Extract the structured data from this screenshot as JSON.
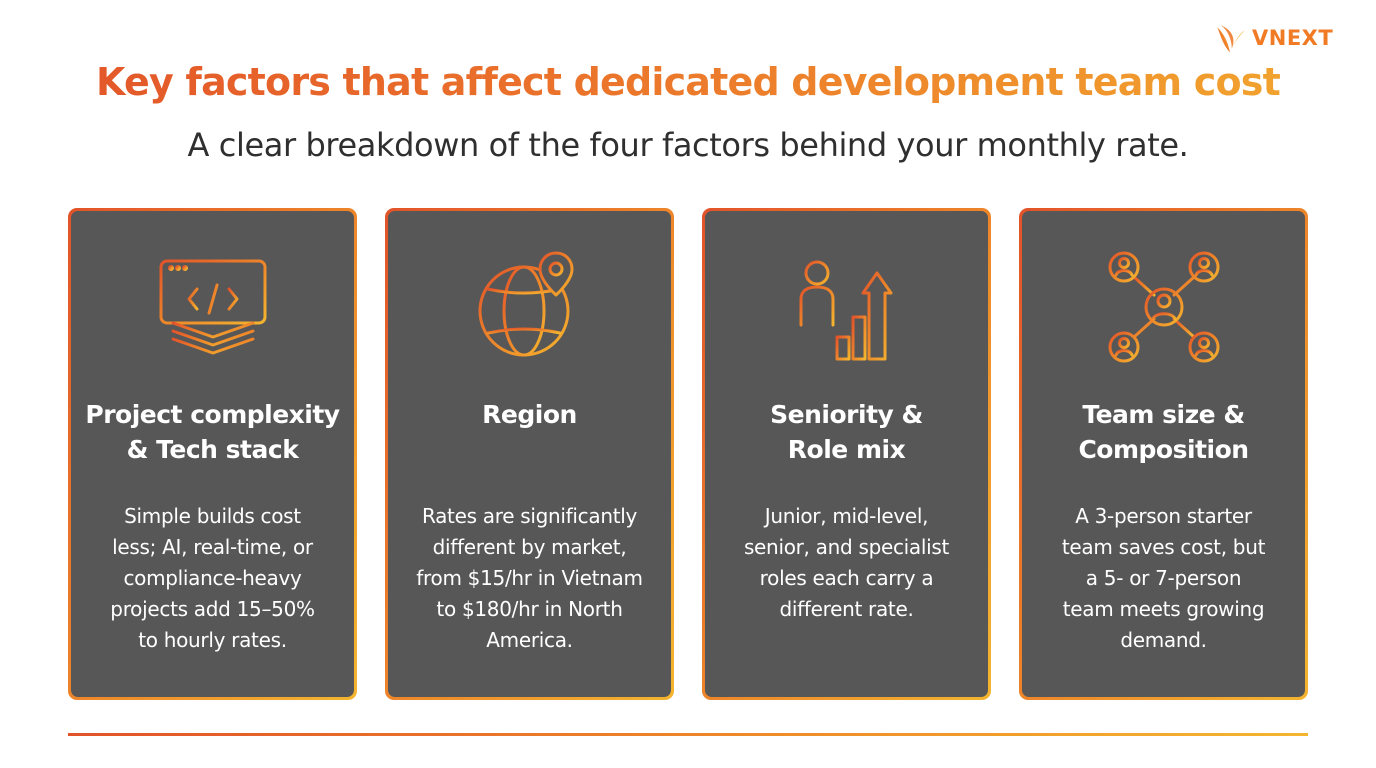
{
  "brand": {
    "name": "VNEXT",
    "icon": "vnext-leaf-icon",
    "color": "#f07b24"
  },
  "header": {
    "title": "Key factors that affect dedicated development team cost",
    "subtitle": "A clear breakdown of the four factors behind your monthly rate."
  },
  "colors": {
    "gradient_start": "#e2532a",
    "gradient_mid": "#ee8a2a",
    "gradient_end": "#f4b52f",
    "card_bg": "#575757"
  },
  "cards": [
    {
      "icon": "code-window-icon",
      "title_line1": "Project complexity",
      "title_line2": "& Tech stack",
      "body": [
        "Simple builds cost",
        "less; AI, real-time, or",
        "compliance-heavy",
        "projects add 15–50%",
        "to hourly rates."
      ]
    },
    {
      "icon": "globe-location-icon",
      "title_line1": "Region",
      "title_line2": "",
      "body": [
        "Rates are significantly",
        "different by market,",
        "from $15/hr in Vietnam",
        "to $180/hr in North",
        "America."
      ]
    },
    {
      "icon": "person-growth-chart-icon",
      "title_line1": "Seniority &",
      "title_line2": "Role mix",
      "body": [
        "Junior, mid-level,",
        "senior, and specialist",
        "roles each carry a",
        "different rate."
      ]
    },
    {
      "icon": "team-network-icon",
      "title_line1": "Team size &",
      "title_line2": "Composition",
      "body": [
        "A 3-person starter",
        "team saves cost, but",
        "a 5- or 7-person",
        "team meets growing",
        "demand."
      ]
    }
  ]
}
